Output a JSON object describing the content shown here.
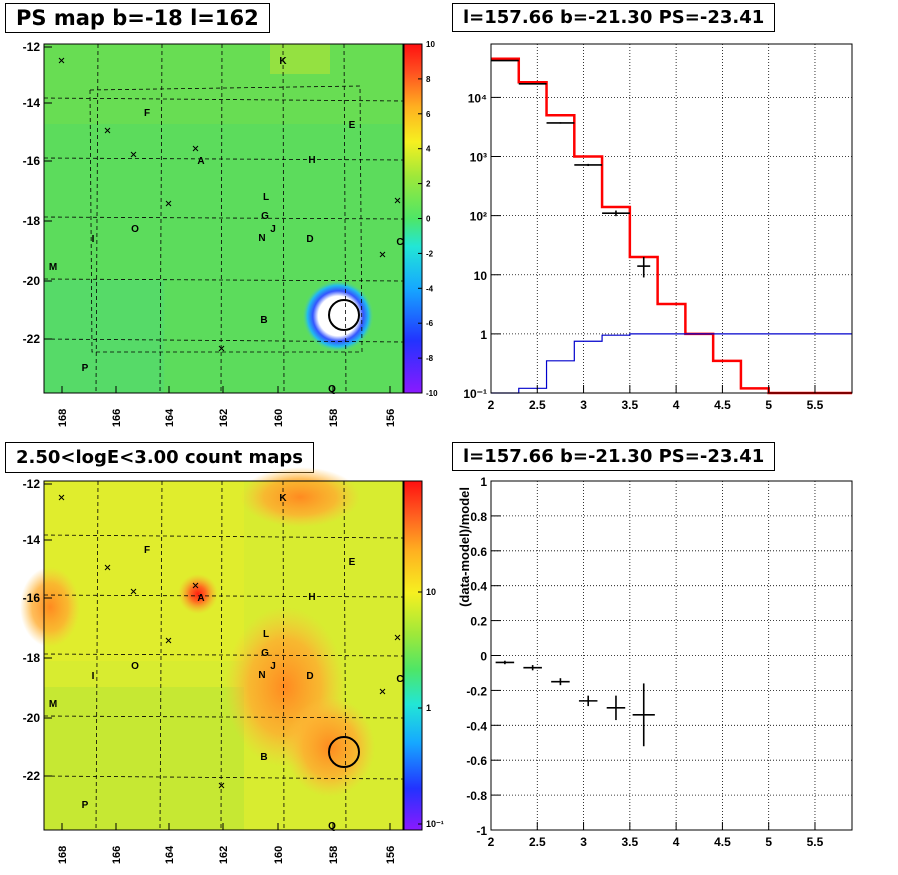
{
  "panels": {
    "ps_map_title": "PS map b=-18 l=162",
    "spectrum_title": "l=157.66 b=-21.30 PS=-23.41",
    "count_map_title": "2.50<logE<3.00 count maps",
    "residual_title": "l=157.66 b=-21.30 PS=-23.41",
    "residual_ylabel": "(data-model)/model"
  },
  "ps_map": {
    "x_ticks": [
      "168",
      "166",
      "164",
      "162",
      "160",
      "158",
      "156"
    ],
    "y_ticks": [
      "-12",
      "-14",
      "-16",
      "-18",
      "-20",
      "-22"
    ],
    "colorbar_ticks": [
      "10",
      "8",
      "6",
      "4",
      "2",
      "0",
      "-2",
      "-4",
      "-6",
      "-8",
      "-10"
    ],
    "labels": [
      "K",
      "F",
      "E",
      "A",
      "H",
      "L",
      "G",
      "J",
      "N",
      "O",
      "I",
      "D",
      "C",
      "M",
      "B",
      "P",
      "Q"
    ]
  },
  "count_map": {
    "x_ticks": [
      "168",
      "166",
      "164",
      "162",
      "160",
      "158",
      "156"
    ],
    "y_ticks": [
      "-12",
      "-14",
      "-16",
      "-18",
      "-20",
      "-22"
    ],
    "colorbar_ticks": [
      "10",
      "1",
      "10⁻¹"
    ],
    "labels": [
      "K",
      "F",
      "E",
      "A",
      "H",
      "L",
      "G",
      "J",
      "N",
      "O",
      "I",
      "D",
      "C",
      "M",
      "B",
      "P",
      "Q"
    ]
  },
  "colors": {
    "model": "#ff0000",
    "data": "#000000",
    "background_model": "#0000cc"
  },
  "chart_data": [
    {
      "type": "heatmap",
      "title": "PS map b=-18 l=162",
      "xlim": [
        168.5,
        155.5
      ],
      "ylim": [
        -23.8,
        -11.9
      ],
      "zlim": [
        -10,
        10
      ],
      "marked_position": {
        "l": 157.66,
        "b": -21.3
      }
    },
    {
      "type": "line",
      "title": "l=157.66 b=-21.30 PS=-23.41",
      "log_y": true,
      "xlim": [
        2,
        5.9
      ],
      "ylim": [
        0.1,
        80000
      ],
      "x_ticks": [
        "2",
        "2.5",
        "3",
        "3.5",
        "4",
        "4.5",
        "5",
        "5.5"
      ],
      "y_ticks": [
        "10⁻¹",
        "1",
        "10",
        "10²",
        "10³",
        "10⁴"
      ],
      "grid": true,
      "series": [
        {
          "style": "step",
          "color": "#ff0000",
          "edges": [
            2,
            2.3,
            2.6,
            2.9,
            3.2,
            3.5,
            3.8,
            4.1,
            4.4,
            4.7,
            5.0,
            5.9
          ],
          "values": [
            45000,
            18000,
            5000,
            1000,
            140,
            20,
            3.2,
            1.0,
            0.35,
            0.12,
            0.1
          ]
        },
        {
          "style": "step",
          "color": "#0000cc",
          "edges": [
            2,
            2.3,
            2.6,
            2.9,
            3.2,
            3.5,
            3.8,
            4.1,
            4.4,
            4.7,
            5.0,
            5.9
          ],
          "values": [
            0.1,
            0.12,
            0.35,
            0.75,
            0.95,
            1.0,
            1.0,
            1.0,
            1.0,
            1.0,
            1.0
          ]
        },
        {
          "style": "points",
          "color": "#000000",
          "x": [
            2.15,
            2.45,
            2.75,
            3.05,
            3.35,
            3.65
          ],
          "xerr": [
            0.15,
            0.15,
            0.15,
            0.15,
            0.15,
            0.07
          ],
          "y": [
            42000,
            17000,
            3700,
            720,
            110,
            14
          ],
          "yerr_low": [
            300,
            200,
            100,
            30,
            12,
            5
          ],
          "yerr_high": [
            300,
            200,
            100,
            30,
            12,
            6
          ]
        }
      ]
    },
    {
      "type": "heatmap",
      "title": "2.50<logE<3.00 count maps",
      "xlim": [
        168.5,
        155.5
      ],
      "ylim": [
        -23.8,
        -11.9
      ],
      "log_z": true,
      "zlim": [
        0.1,
        30
      ],
      "marked_position": {
        "l": 157.66,
        "b": -21.3
      }
    },
    {
      "type": "scatter",
      "title": "l=157.66 b=-21.30 PS=-23.41",
      "ylabel": "(data-model)/model",
      "xlim": [
        2,
        5.9
      ],
      "ylim": [
        -1,
        1
      ],
      "x_ticks": [
        "2",
        "2.5",
        "3",
        "3.5",
        "4",
        "4.5",
        "5",
        "5.5"
      ],
      "y_ticks": [
        "1",
        "0.8",
        "0.6",
        "0.4",
        "0.2",
        "0",
        "-0.2",
        "-0.4",
        "-0.6",
        "-0.8",
        "-1"
      ],
      "grid": true,
      "x": [
        2.15,
        2.45,
        2.75,
        3.05,
        3.35,
        3.65
      ],
      "xerr": [
        0.1,
        0.1,
        0.1,
        0.1,
        0.1,
        0.12
      ],
      "y": [
        -0.04,
        -0.07,
        -0.15,
        -0.26,
        -0.3,
        -0.34
      ],
      "yerr": [
        0.01,
        0.015,
        0.02,
        0.03,
        0.07,
        0.18
      ]
    }
  ]
}
